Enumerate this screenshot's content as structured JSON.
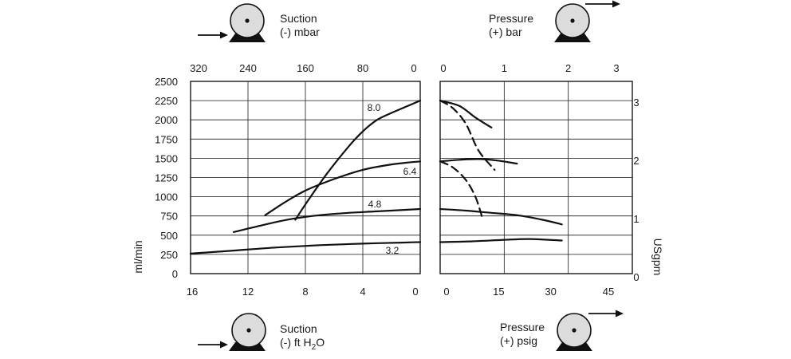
{
  "chart_data": {
    "type": "line",
    "legend": {
      "suction_top": [
        "Suction",
        "(-) mbar"
      ],
      "pressure_top": [
        "Pressure",
        "(+) bar"
      ],
      "suction_bottom": [
        "Suction",
        "(-) ft H",
        "2",
        "O"
      ],
      "pressure_bottom": [
        "Pressure",
        "(+) psig"
      ]
    },
    "left_panel": {
      "top_ticks": [
        "320",
        "240",
        "160",
        "80",
        "0"
      ],
      "bottom_ticks": [
        "16",
        "12",
        "8",
        "4",
        "0"
      ],
      "x_range_ft_h2o": [
        16,
        0
      ],
      "series": [
        {
          "name": "8.0",
          "x": [
            8.7,
            8.0,
            6.5,
            5.0,
            4.0,
            3.0,
            2.0,
            1.0,
            0
          ],
          "y": [
            700,
            900,
            1300,
            1650,
            1850,
            2000,
            2090,
            2170,
            2250
          ]
        },
        {
          "name": "6.4",
          "x": [
            10.8,
            9.5,
            8.0,
            6.0,
            4.0,
            2.0,
            0
          ],
          "y": [
            760,
            920,
            1080,
            1230,
            1350,
            1420,
            1460
          ]
        },
        {
          "name": "4.8",
          "x": [
            13.0,
            11.0,
            9.0,
            7.0,
            5.0,
            3.0,
            1.0,
            0
          ],
          "y": [
            540,
            630,
            710,
            760,
            790,
            810,
            830,
            840
          ]
        },
        {
          "name": "3.2",
          "x": [
            16.0,
            13.0,
            10.0,
            7.0,
            4.0,
            1.0,
            0
          ],
          "y": [
            260,
            300,
            340,
            370,
            390,
            405,
            410
          ]
        }
      ]
    },
    "right_panel": {
      "top_ticks": [
        "0",
        "1",
        "2",
        "3"
      ],
      "bottom_ticks": [
        "0",
        "15",
        "30",
        "45"
      ],
      "x_range_bar": [
        0,
        3
      ],
      "series": [
        {
          "name": "8.0",
          "style": "solid",
          "x": [
            0,
            0.3,
            0.55,
            0.8
          ],
          "y": [
            2250,
            2180,
            2030,
            1900
          ]
        },
        {
          "name": "8.0",
          "style": "dashed",
          "x": [
            0,
            0.2,
            0.4,
            0.6,
            0.85
          ],
          "y": [
            2250,
            2150,
            1950,
            1600,
            1350
          ]
        },
        {
          "name": "6.4",
          "style": "solid",
          "x": [
            0,
            0.3,
            0.6,
            0.9,
            1.2
          ],
          "y": [
            1460,
            1480,
            1490,
            1470,
            1430
          ]
        },
        {
          "name": "6.4",
          "style": "dashed",
          "x": [
            0,
            0.2,
            0.4,
            0.55,
            0.65
          ],
          "y": [
            1460,
            1380,
            1220,
            1000,
            750
          ]
        },
        {
          "name": "4.8",
          "style": "solid",
          "x": [
            0,
            0.4,
            0.8,
            1.2,
            1.6,
            1.9
          ],
          "y": [
            840,
            820,
            790,
            760,
            700,
            640
          ]
        },
        {
          "name": "3.2",
          "style": "solid",
          "x": [
            0,
            0.5,
            1.0,
            1.4,
            1.9
          ],
          "y": [
            410,
            420,
            440,
            450,
            430
          ]
        }
      ]
    },
    "ylabel_left": "ml/min",
    "yticks_left": [
      "0",
      "250",
      "500",
      "750",
      "1000",
      "1250",
      "1500",
      "1750",
      "2000",
      "2250",
      "2500"
    ],
    "ylim_left": [
      0,
      2500
    ],
    "ylabel_right": "USgpm",
    "yticks_right": [
      "0",
      "1",
      "2",
      "3"
    ],
    "ylim_right_usgpm": [
      0,
      3.3
    ],
    "grid": true
  }
}
